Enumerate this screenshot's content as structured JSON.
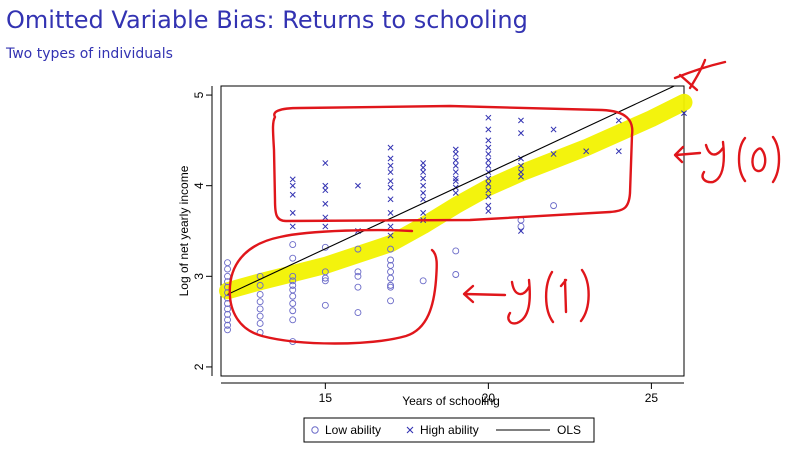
{
  "slide": {
    "title": "Omitted Variable Bias: Returns to schooling",
    "subtitle": "Two types of individuals"
  },
  "colors": {
    "title": "#3333b2",
    "markers": "#6b6bc8",
    "highlight": "#f2f200",
    "annotation": "#e0161b"
  },
  "annotations": [
    "y(0)",
    "y(1)",
    "x"
  ],
  "chart_data": {
    "type": "scatter",
    "xlabel": "Years of schooling",
    "ylabel": "Log of net yearly income",
    "xlim": [
      11.8,
      26
    ],
    "ylim": [
      1.9,
      5.1
    ],
    "xticks": [
      15,
      20,
      25
    ],
    "yticks": [
      2,
      3,
      4,
      5
    ],
    "grid": false,
    "legend_position": "bottom",
    "ols_line": {
      "x": [
        12,
        26
      ],
      "y": [
        2.8,
        5.15
      ]
    },
    "series": [
      {
        "name": "Low ability",
        "marker": "circle",
        "points": [
          [
            12,
            3.15
          ],
          [
            12,
            3.08
          ],
          [
            12,
            3.0
          ],
          [
            12,
            2.94
          ],
          [
            12,
            2.88
          ],
          [
            12,
            2.82
          ],
          [
            12,
            2.76
          ],
          [
            12,
            2.7
          ],
          [
            12,
            2.64
          ],
          [
            12,
            2.58
          ],
          [
            12,
            2.52
          ],
          [
            12,
            2.46
          ],
          [
            12,
            2.41
          ],
          [
            13,
            3.0
          ],
          [
            13,
            2.9
          ],
          [
            13,
            2.8
          ],
          [
            13,
            2.72
          ],
          [
            13,
            2.64
          ],
          [
            13,
            2.56
          ],
          [
            13,
            2.48
          ],
          [
            13,
            2.38
          ],
          [
            14,
            3.35
          ],
          [
            14,
            3.2
          ],
          [
            14,
            3.0
          ],
          [
            14,
            2.95
          ],
          [
            14,
            2.9
          ],
          [
            14,
            2.85
          ],
          [
            14,
            2.78
          ],
          [
            14,
            2.7
          ],
          [
            14,
            2.62
          ],
          [
            14,
            2.52
          ],
          [
            14,
            2.28
          ],
          [
            15,
            3.32
          ],
          [
            15,
            3.05
          ],
          [
            15,
            2.98
          ],
          [
            15,
            2.95
          ],
          [
            15,
            2.68
          ],
          [
            16,
            3.3
          ],
          [
            16,
            3.05
          ],
          [
            16,
            3.0
          ],
          [
            16,
            2.88
          ],
          [
            16,
            2.6
          ],
          [
            17,
            3.3
          ],
          [
            17,
            3.18
          ],
          [
            17,
            3.12
          ],
          [
            17,
            3.05
          ],
          [
            17,
            2.98
          ],
          [
            17,
            2.9
          ],
          [
            17,
            2.88
          ],
          [
            17,
            2.73
          ],
          [
            18,
            2.95
          ],
          [
            19,
            3.28
          ],
          [
            19,
            3.02
          ],
          [
            21,
            3.62
          ],
          [
            21,
            3.55
          ],
          [
            22,
            3.78
          ]
        ]
      },
      {
        "name": "High ability",
        "marker": "x",
        "points": [
          [
            14,
            4.07
          ],
          [
            14,
            4.0
          ],
          [
            14,
            3.9
          ],
          [
            14,
            3.7
          ],
          [
            14,
            3.55
          ],
          [
            15,
            4.25
          ],
          [
            15,
            4.0
          ],
          [
            15,
            3.95
          ],
          [
            15,
            3.8
          ],
          [
            15,
            3.65
          ],
          [
            15,
            3.55
          ],
          [
            16,
            4.0
          ],
          [
            16,
            3.5
          ],
          [
            17,
            4.42
          ],
          [
            17,
            4.3
          ],
          [
            17,
            4.22
          ],
          [
            17,
            4.15
          ],
          [
            17,
            4.05
          ],
          [
            17,
            3.98
          ],
          [
            17,
            3.85
          ],
          [
            17,
            3.7
          ],
          [
            17,
            3.55
          ],
          [
            17,
            3.45
          ],
          [
            18,
            4.25
          ],
          [
            18,
            4.2
          ],
          [
            18,
            4.15
          ],
          [
            18,
            4.08
          ],
          [
            18,
            4.0
          ],
          [
            18,
            3.92
          ],
          [
            18,
            3.85
          ],
          [
            18,
            3.7
          ],
          [
            18,
            3.62
          ],
          [
            19,
            4.4
          ],
          [
            19,
            4.35
          ],
          [
            19,
            4.28
          ],
          [
            19,
            4.22
          ],
          [
            19,
            4.15
          ],
          [
            19,
            4.08
          ],
          [
            19,
            4.05
          ],
          [
            19,
            3.98
          ],
          [
            19,
            3.92
          ],
          [
            20,
            4.75
          ],
          [
            20,
            4.62
          ],
          [
            20,
            4.5
          ],
          [
            20,
            4.42
          ],
          [
            20,
            4.35
          ],
          [
            20,
            4.28
          ],
          [
            20,
            4.22
          ],
          [
            20,
            4.15
          ],
          [
            20,
            4.08
          ],
          [
            20,
            4.02
          ],
          [
            20,
            3.95
          ],
          [
            20,
            3.88
          ],
          [
            20,
            3.78
          ],
          [
            20,
            3.72
          ],
          [
            21,
            4.72
          ],
          [
            21,
            4.58
          ],
          [
            21,
            4.3
          ],
          [
            21,
            4.22
          ],
          [
            21,
            4.15
          ],
          [
            21,
            4.1
          ],
          [
            21,
            3.5
          ],
          [
            22,
            4.62
          ],
          [
            22,
            4.35
          ],
          [
            23,
            4.38
          ],
          [
            24,
            4.72
          ],
          [
            24,
            4.38
          ],
          [
            26,
            4.8
          ]
        ]
      }
    ],
    "legend": [
      {
        "label": "Low ability",
        "marker": "circle"
      },
      {
        "label": "High ability",
        "marker": "x"
      },
      {
        "label": "OLS",
        "marker": "line"
      }
    ]
  }
}
